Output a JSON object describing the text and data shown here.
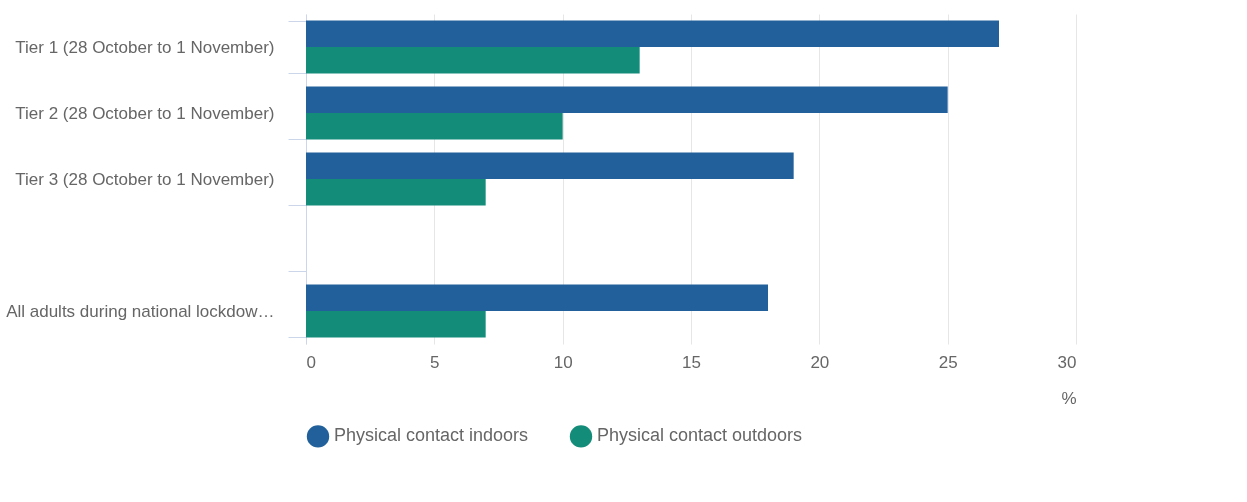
{
  "chart_data": {
    "type": "bar",
    "orientation": "horizontal",
    "xlabel": "%",
    "categories": [
      "Tier 1 (28 October to 1 November)",
      "Tier 2 (28 October to 1 November)",
      "Tier 3 (28 October to 1 November)",
      null,
      "All adults during national lockdow…"
    ],
    "series": [
      {
        "name": "Physical contact indoors",
        "color": "#21609a",
        "values": [
          27,
          25,
          19,
          null,
          18
        ]
      },
      {
        "name": "Physical contact outdoors",
        "color": "#148c7a",
        "values": [
          13,
          10,
          7,
          null,
          7
        ]
      }
    ],
    "xlim": [
      0,
      30
    ],
    "xticks": [
      0,
      5,
      10,
      15,
      20,
      25,
      30
    ],
    "grid": "x",
    "legend": "bottom"
  }
}
